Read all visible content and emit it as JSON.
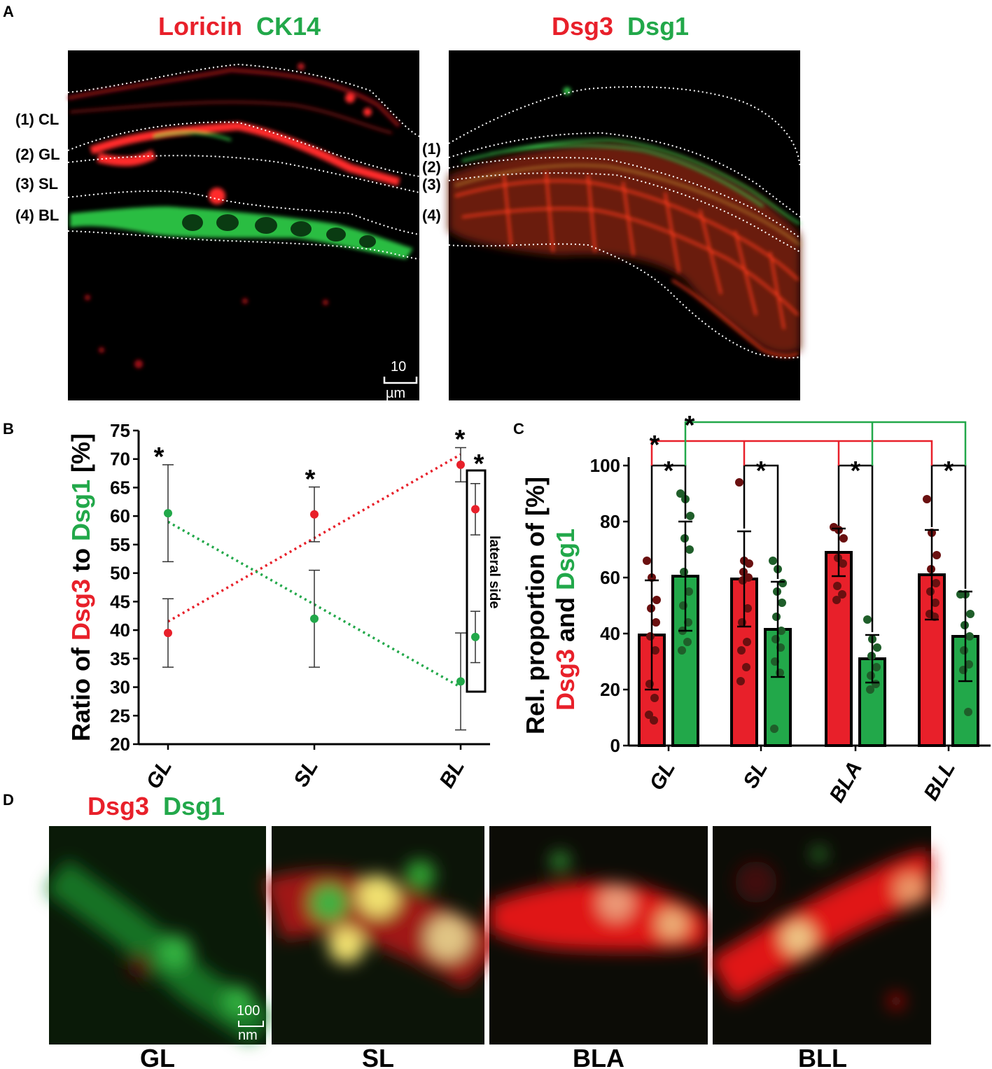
{
  "colors": {
    "red": "#e8202a",
    "green": "#22a84a",
    "black": "#000000",
    "darkred": "#6a1010",
    "darkgreen": "#1f5e2a"
  },
  "panelA": {
    "label": "A",
    "left": {
      "title_red": "Loricin",
      "title_green": "CK14",
      "layers": [
        "(1) CL",
        "(2) GL",
        "(3) SL",
        "(4) BL"
      ],
      "scalebar": [
        "10",
        "µm"
      ]
    },
    "right": {
      "title_red": "Dsg3",
      "title_green": "Dsg1",
      "layers": [
        "(1)",
        "(2)",
        "(3)",
        "(4)"
      ]
    }
  },
  "panelD": {
    "label": "D",
    "title_red": "Dsg3",
    "title_green": "Dsg1",
    "scalebar": [
      "100",
      "nm"
    ],
    "labels": [
      "GL",
      "SL",
      "BLA",
      "BLL"
    ]
  },
  "chart_data": [
    {
      "panel": "B",
      "type": "scatter",
      "ylabel_parts": [
        {
          "text": "Ratio of ",
          "color": "black"
        },
        {
          "text": "Dsg3",
          "color": "red"
        },
        {
          "text": " to ",
          "color": "black"
        },
        {
          "text": "Dsg1",
          "color": "green"
        },
        {
          "text": " [%]",
          "color": "black"
        }
      ],
      "ylim": [
        20,
        75
      ],
      "yticks": [
        20,
        25,
        30,
        35,
        40,
        45,
        50,
        55,
        60,
        65,
        70,
        75
      ],
      "categories": [
        "GL",
        "SL",
        "BL"
      ],
      "series": [
        {
          "color": "red",
          "mean": [
            39.5,
            60.3,
            69
          ],
          "err": [
            6,
            4.8,
            3
          ]
        },
        {
          "color": "green",
          "mean": [
            60.5,
            42,
            31
          ],
          "err": [
            8.5,
            8.5,
            8.5
          ]
        }
      ],
      "trend": {
        "red": [
          [
            0,
            41.5
          ],
          [
            2,
            70.8
          ]
        ],
        "green": [
          [
            0,
            59
          ],
          [
            2,
            30
          ]
        ]
      },
      "lateral": {
        "label": "lateral side",
        "red": {
          "mean": 61.2,
          "err": 4.5
        },
        "green": {
          "mean": 38.8,
          "err": 4.5
        }
      },
      "stars": [
        "GL",
        "SL",
        "BL",
        "lateral"
      ]
    },
    {
      "panel": "C",
      "type": "bar",
      "ylabel_parts": [
        {
          "text": "Rel. proportion of",
          "color": "black",
          "line": 1
        },
        {
          "text": "Dsg3",
          "color": "red",
          "line": 2
        },
        {
          "text": " and ",
          "color": "black",
          "line": 2
        },
        {
          "text": "Dsg1",
          "color": "green",
          "line": 2
        },
        {
          "text": " [%]",
          "color": "black",
          "line": 1
        }
      ],
      "ylim": [
        0,
        100
      ],
      "yticks": [
        0,
        20,
        40,
        60,
        80,
        100
      ],
      "categories": [
        "GL",
        "SL",
        "BLA",
        "BLL"
      ],
      "series": [
        {
          "color": "red",
          "values": [
            39.5,
            59.5,
            69,
            61
          ],
          "err": [
            19.5,
            17,
            8.5,
            16
          ],
          "points": [
            [
              66,
              60,
              52,
              49,
              44,
              39,
              34,
              22,
              17,
              11,
              9
            ],
            [
              94,
              66,
              65,
              62,
              60,
              59,
              49,
              44,
              37,
              34,
              28,
              23
            ],
            [
              78,
              77,
              74,
              67,
              65,
              57,
              54,
              52
            ],
            [
              88,
              76,
              68,
              63,
              58,
              55,
              51,
              47,
              46
            ]
          ]
        },
        {
          "color": "green",
          "values": [
            60.5,
            41.5,
            31,
            39
          ],
          "err": [
            19.5,
            17,
            8.5,
            16
          ],
          "points": [
            [
              90,
              88,
              82,
              74,
              70,
              62,
              55,
              50,
              44,
              41,
              37,
              34
            ],
            [
              66,
              63,
              58,
              55,
              51,
              46,
              41,
              38,
              35,
              30,
              26,
              6
            ],
            [
              45,
              38,
              35,
              32,
              28,
              25,
              22,
              20
            ],
            [
              54,
              54,
              47,
              43,
              39,
              34,
              29,
              27,
              12
            ]
          ]
        }
      ],
      "stars": 7
    }
  ]
}
